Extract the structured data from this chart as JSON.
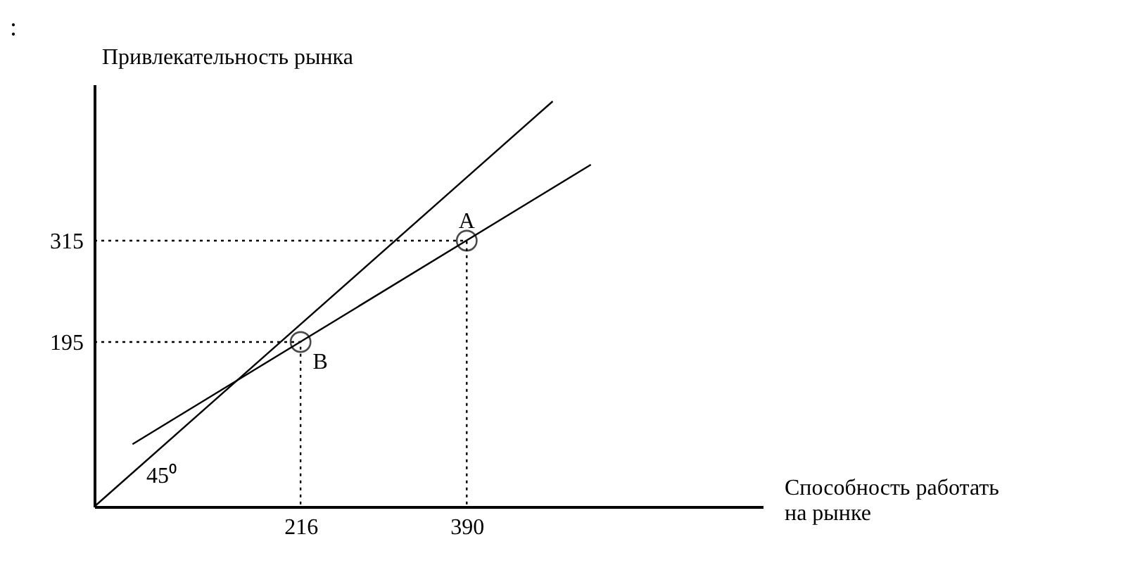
{
  "chart_data": {
    "type": "scatter",
    "xlabel": "Способность  работать\nна  рынке",
    "ylabel": "Привлекательность  рынка",
    "xlim": [
      0,
      700
    ],
    "ylim": [
      0,
      500
    ],
    "xticks": [
      216,
      390
    ],
    "yticks": [
      195,
      315
    ],
    "grid": false,
    "series": [
      {
        "x": [
          390,
          216
        ],
        "values": [
          315,
          195
        ],
        "color": "#000000",
        "marker": "circle"
      },
      {
        "type": "line",
        "x": [
          0,
          480
        ],
        "values": [
          0,
          480
        ],
        "color": "#000000",
        "line_style": "solid"
      },
      {
        "type": "line",
        "x": [
          40,
          520
        ],
        "values": [
          74,
          405
        ],
        "color": "#000000",
        "line_style": "solid"
      },
      {
        "type": "line",
        "x": [
          0,
          390,
          390
        ],
        "values": [
          315,
          315,
          0
        ],
        "color": "#000000",
        "line_style": "dotted"
      },
      {
        "type": "line",
        "x": [
          0,
          216,
          216
        ],
        "values": [
          195,
          195,
          0
        ],
        "color": "#000000",
        "line_style": "dotted"
      }
    ],
    "annotations": [
      ":",
      {
        "text": "A",
        "x": 390,
        "y": 315
      },
      {
        "text": "B",
        "x": 216,
        "y": 195
      },
      {
        "text": "45⁰",
        "x": 0,
        "y": 0
      }
    ]
  }
}
